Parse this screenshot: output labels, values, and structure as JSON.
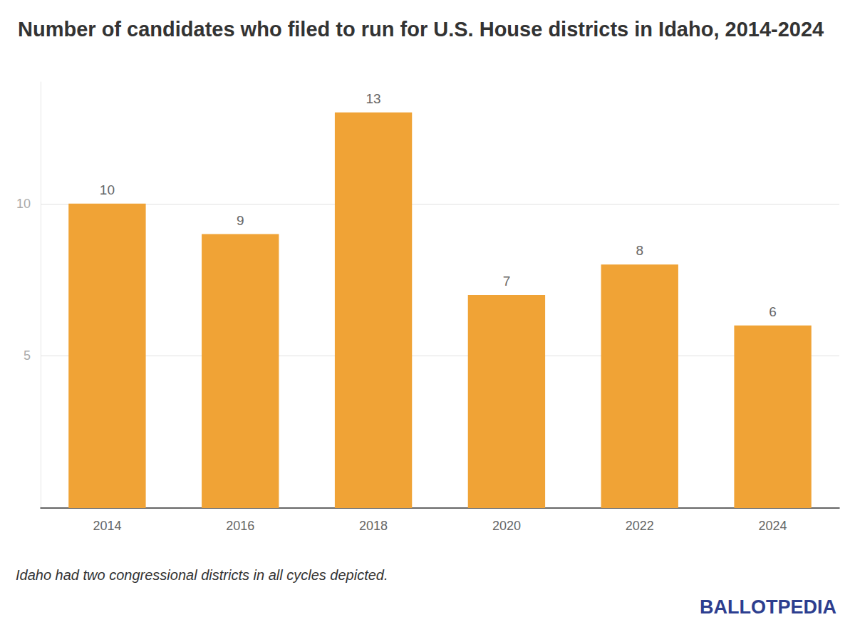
{
  "chart_data": {
    "type": "bar",
    "title": "Number of candidates who filed to run for U.S. House districts in Idaho, 2014-2024",
    "categories": [
      "2014",
      "2016",
      "2018",
      "2020",
      "2022",
      "2024"
    ],
    "values": [
      10,
      9,
      13,
      7,
      8,
      6
    ],
    "color": "#f0a336",
    "ylim": [
      0,
      14
    ],
    "yticks": [
      5,
      10
    ],
    "grid": true,
    "data_labels": true,
    "footnote": "Idaho had two congressional districts in all cycles depicted.",
    "source": "BALLOTPEDIA"
  }
}
